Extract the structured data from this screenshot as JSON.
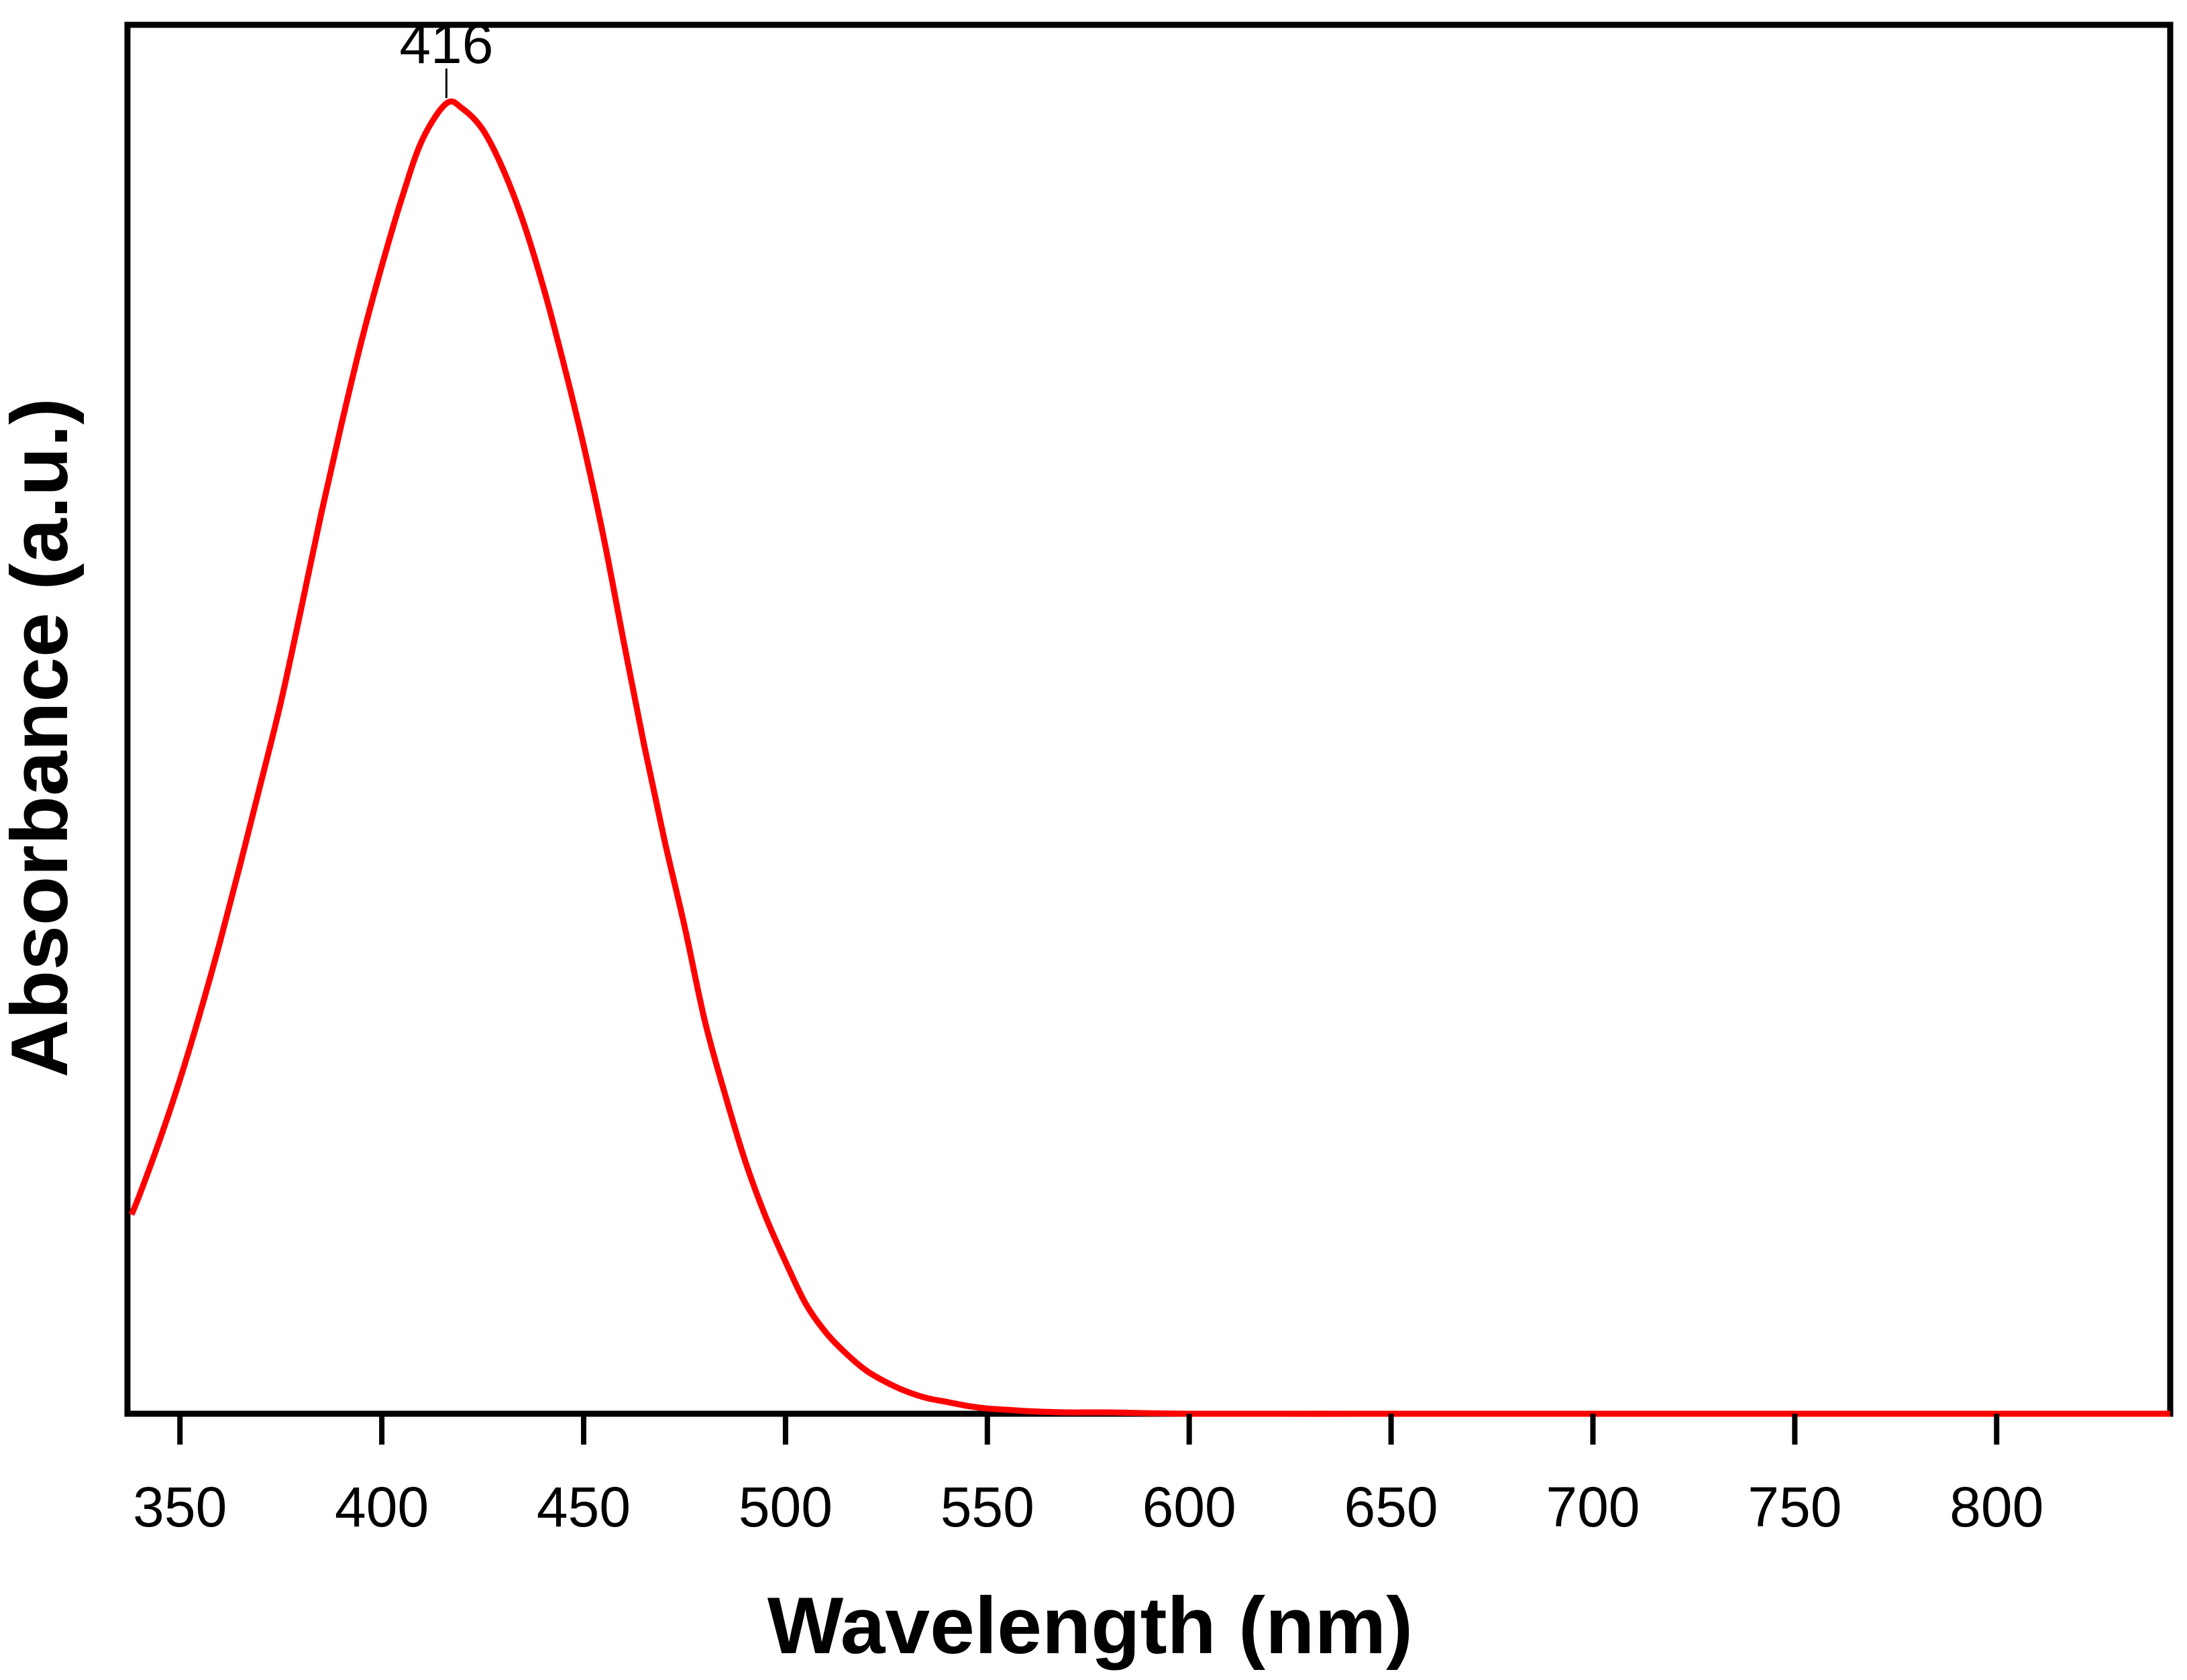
{
  "chart_data": {
    "type": "line",
    "title": "",
    "xlabel": "Wavelength (nm)",
    "ylabel": "Absorbance (a.u.)",
    "xlim": [
      337,
      843
    ],
    "ylim": [
      0,
      1.06
    ],
    "xticks": [
      350,
      400,
      450,
      500,
      550,
      600,
      650,
      700,
      750,
      800
    ],
    "xtick_labels": [
      "350",
      "400",
      "450",
      "500",
      "550",
      "600",
      "650",
      "700",
      "750",
      "800"
    ],
    "yticks": [],
    "grid": false,
    "legend": "none",
    "series": [
      {
        "name": "Absorbance",
        "color": "#ff0000",
        "x": [
          338,
          340,
          345,
          350,
          355,
          360,
          365,
          370,
          375,
          380,
          385,
          390,
          395,
          400,
          405,
          410,
          416,
          420,
          425,
          430,
          435,
          440,
          445,
          450,
          455,
          460,
          465,
          470,
          475,
          480,
          485,
          490,
          495,
          500,
          505,
          510,
          515,
          520,
          525,
          530,
          535,
          540,
          545,
          550,
          555,
          560,
          570,
          580,
          600,
          650,
          700,
          750,
          800,
          843
        ],
        "y": [
          0.152,
          0.167,
          0.209,
          0.255,
          0.306,
          0.361,
          0.42,
          0.481,
          0.543,
          0.614,
          0.687,
          0.755,
          0.819,
          0.876,
          0.928,
          0.972,
          1.0,
          0.996,
          0.98,
          0.95,
          0.91,
          0.86,
          0.802,
          0.739,
          0.668,
          0.588,
          0.51,
          0.438,
          0.372,
          0.3,
          0.244,
          0.193,
          0.151,
          0.116,
          0.084,
          0.062,
          0.046,
          0.033,
          0.024,
          0.017,
          0.012,
          0.009,
          0.006,
          0.004,
          0.003,
          0.002,
          0.001,
          0.001,
          0.0,
          0.0,
          0.0,
          0.0,
          0.0,
          0.0
        ]
      }
    ],
    "annotations": [
      {
        "text": "416",
        "x": 416,
        "y": 1.0
      }
    ]
  }
}
